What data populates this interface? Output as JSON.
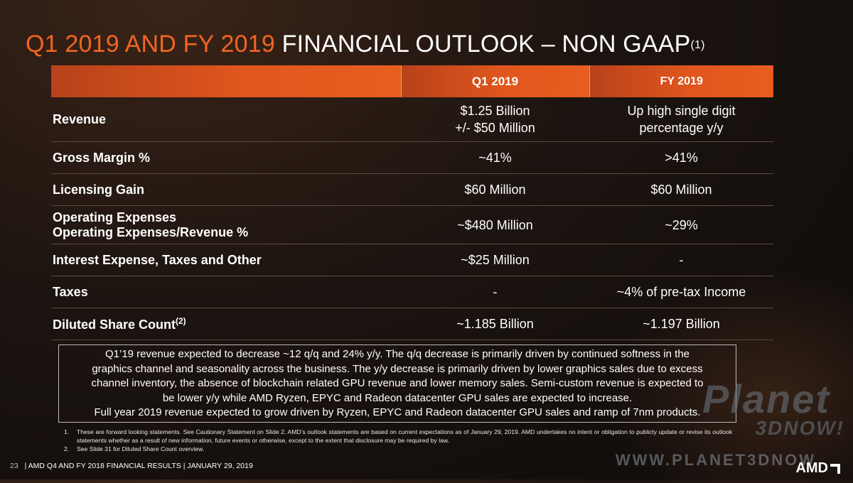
{
  "slide": {
    "title_accent": "Q1 2019 AND FY 2019",
    "title_main": "FINANCIAL OUTLOOK – NON GAAP",
    "title_sup": "(1)"
  },
  "table": {
    "headers": [
      "",
      "Q1 2019",
      "FY 2019"
    ],
    "rows": [
      {
        "label": "Revenue",
        "q1": [
          "$1.25 Billion",
          "+/- $50 Million"
        ],
        "fy": [
          "Up high single digit",
          "percentage y/y"
        ]
      },
      {
        "label": "Gross Margin %",
        "q1": [
          "~41%"
        ],
        "fy": [
          ">41%"
        ]
      },
      {
        "label": "Licensing Gain",
        "q1": [
          "$60 Million"
        ],
        "fy": [
          "$60 Million"
        ]
      },
      {
        "label": "Operating Expenses",
        "label2": "Operating Expenses/Revenue %",
        "q1": [
          "~$480 Million"
        ],
        "fy": [
          "~29%"
        ]
      },
      {
        "label": "Interest Expense, Taxes and Other",
        "q1": [
          "~$25 Million"
        ],
        "fy": [
          "-"
        ]
      },
      {
        "label": "Taxes",
        "q1": [
          "-"
        ],
        "fy": [
          "~4% of pre-tax Income"
        ]
      },
      {
        "label": "Diluted Share Count",
        "label_sup": "(2)",
        "q1": [
          "~1.185 Billion"
        ],
        "fy": [
          "~1.197 Billion"
        ]
      }
    ]
  },
  "note": [
    "Q1’19 revenue expected to decrease ~12 q/q and 24% y/y.  The q/q decrease is primarily driven by continued softness in the",
    "graphics channel and seasonality across the business.  The y/y decrease is primarily driven by lower graphics sales due to excess",
    "channel inventory, the absence of blockchain related GPU revenue and lower memory sales.  Semi-custom revenue is expected to",
    "be lower y/y while AMD Ryzen, EPYC and Radeon datacenter GPU sales are expected to increase.",
    "Full year 2019 revenue expected to grow driven by Ryzen, EPYC and Radeon datacenter GPU sales and ramp of 7nm products."
  ],
  "footnotes": [
    {
      "num": "1.",
      "text": "These are forward looking statements.  See Cautionary Statement on Slide 2. AMD’s outlook statements are based on current expectations as of January 29, 2019.  AMD undertakes no intent or obligation to publicly update or revise its outlook statements whether as a result of new information, future events or otherwise, except to the extent that disclosure may be required by law."
    },
    {
      "num": "2.",
      "text": "See Slide 31 for Diluted Share Count overview."
    }
  ],
  "footer": {
    "page": "23",
    "text": "|  AMD Q4 AND FY 2018 FINANCIAL RESULTS  |  JANUARY 29, 2019"
  },
  "watermark": {
    "line1": "Planet",
    "line2": "3DNOW!",
    "url": "WWW.PLANET3DNOW"
  },
  "logo": {
    "text": "AMD"
  },
  "colors": {
    "accent": "#f26522",
    "header_bar": "#e0561d"
  }
}
